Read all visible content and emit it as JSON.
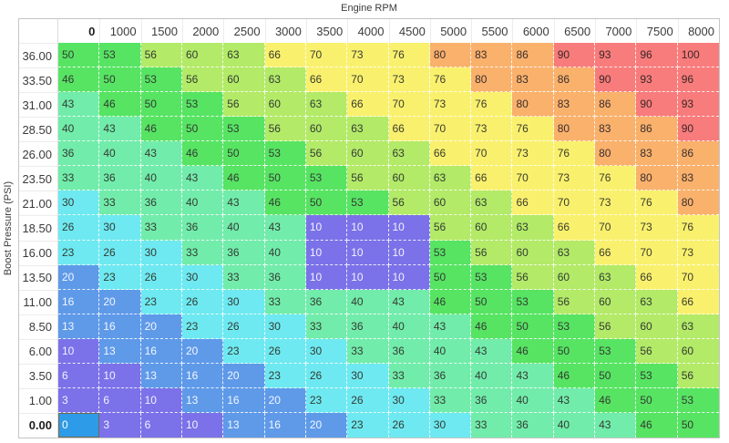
{
  "axes": {
    "x_title": "Engine RPM",
    "y_title": "Boost Pressure (PSI)"
  },
  "chart_data": {
    "type": "heatmap",
    "title": "Engine RPM",
    "xlabel": "Engine RPM",
    "ylabel": "Boost Pressure (PSI)",
    "columns": [
      "0",
      "1000",
      "1500",
      "2000",
      "2500",
      "3000",
      "3500",
      "4000",
      "4500",
      "5000",
      "5500",
      "6000",
      "6500",
      "7000",
      "7500",
      "8000"
    ],
    "rows": [
      "36.00",
      "33.50",
      "31.00",
      "28.50",
      "26.00",
      "23.50",
      "21.00",
      "18.50",
      "16.00",
      "13.50",
      "11.00",
      "8.50",
      "6.00",
      "3.50",
      "1.00",
      "0.00"
    ],
    "values": [
      [
        50,
        53,
        56,
        60,
        63,
        66,
        70,
        73,
        76,
        80,
        83,
        86,
        90,
        93,
        96,
        100
      ],
      [
        46,
        50,
        53,
        56,
        60,
        63,
        66,
        70,
        73,
        76,
        80,
        83,
        86,
        90,
        93,
        96
      ],
      [
        43,
        46,
        50,
        53,
        56,
        60,
        63,
        66,
        70,
        73,
        76,
        80,
        83,
        86,
        90,
        93
      ],
      [
        40,
        43,
        46,
        50,
        53,
        56,
        60,
        63,
        66,
        70,
        73,
        76,
        80,
        83,
        86,
        90
      ],
      [
        36,
        40,
        43,
        46,
        50,
        53,
        56,
        60,
        63,
        66,
        70,
        73,
        76,
        80,
        83,
        86
      ],
      [
        33,
        36,
        40,
        43,
        46,
        50,
        53,
        56,
        60,
        63,
        66,
        70,
        73,
        76,
        80,
        83
      ],
      [
        30,
        33,
        36,
        40,
        43,
        46,
        50,
        53,
        56,
        60,
        63,
        66,
        70,
        73,
        76,
        80
      ],
      [
        26,
        30,
        33,
        36,
        40,
        43,
        10,
        10,
        10,
        56,
        60,
        63,
        66,
        70,
        73,
        76
      ],
      [
        23,
        26,
        30,
        33,
        36,
        40,
        10,
        10,
        10,
        53,
        56,
        60,
        63,
        66,
        70,
        73
      ],
      [
        20,
        23,
        26,
        30,
        33,
        36,
        10,
        10,
        10,
        50,
        53,
        56,
        60,
        63,
        66,
        70
      ],
      [
        16,
        20,
        23,
        26,
        30,
        33,
        36,
        40,
        43,
        46,
        50,
        53,
        56,
        60,
        63,
        66
      ],
      [
        13,
        16,
        20,
        23,
        26,
        30,
        33,
        36,
        40,
        43,
        46,
        50,
        53,
        56,
        60,
        63
      ],
      [
        10,
        13,
        16,
        20,
        23,
        26,
        30,
        33,
        36,
        40,
        43,
        46,
        50,
        53,
        56,
        60
      ],
      [
        6,
        10,
        13,
        16,
        20,
        23,
        26,
        30,
        33,
        36,
        40,
        43,
        46,
        50,
        53,
        56
      ],
      [
        3,
        6,
        10,
        13,
        16,
        20,
        23,
        26,
        30,
        33,
        36,
        40,
        43,
        46,
        50,
        53
      ],
      [
        0,
        3,
        6,
        10,
        13,
        16,
        20,
        23,
        26,
        30,
        33,
        36,
        40,
        43,
        46,
        50
      ]
    ],
    "legend": "none",
    "grid": "dashed-white"
  },
  "color_scale": {
    "bands": [
      {
        "min": 0,
        "max": 12,
        "bg": "#7b72e9",
        "fg": "#f2f2ff"
      },
      {
        "min": 13,
        "max": 22,
        "bg": "#5f9ae9",
        "fg": "#f2f6ff"
      },
      {
        "min": 23,
        "max": 32,
        "bg": "#6ee9f1",
        "fg": "#333c33"
      },
      {
        "min": 33,
        "max": 45,
        "bg": "#72ecab",
        "fg": "#333c33"
      },
      {
        "min": 46,
        "max": 55,
        "bg": "#57e463",
        "fg": "#333c33"
      },
      {
        "min": 56,
        "max": 65,
        "bg": "#b3ea68",
        "fg": "#333c33"
      },
      {
        "min": 66,
        "max": 79,
        "bg": "#f9f16e",
        "fg": "#3c3c2e"
      },
      {
        "min": 80,
        "max": 89,
        "bg": "#f9b16c",
        "fg": "#3c2e2e"
      },
      {
        "min": 90,
        "max": 100,
        "bg": "#f87c7c",
        "fg": "#3c2626"
      }
    ]
  },
  "selection": {
    "active_cell": {
      "row": "0.00",
      "col": "0",
      "value": 0,
      "bg": "#2e9be8",
      "fg": "#ffffff",
      "border": "#6f6a52"
    },
    "edited_block": {
      "rows": [
        "18.50",
        "16.00",
        "13.50"
      ],
      "cols": [
        "3500",
        "4000",
        "4500"
      ],
      "value": 10
    }
  }
}
